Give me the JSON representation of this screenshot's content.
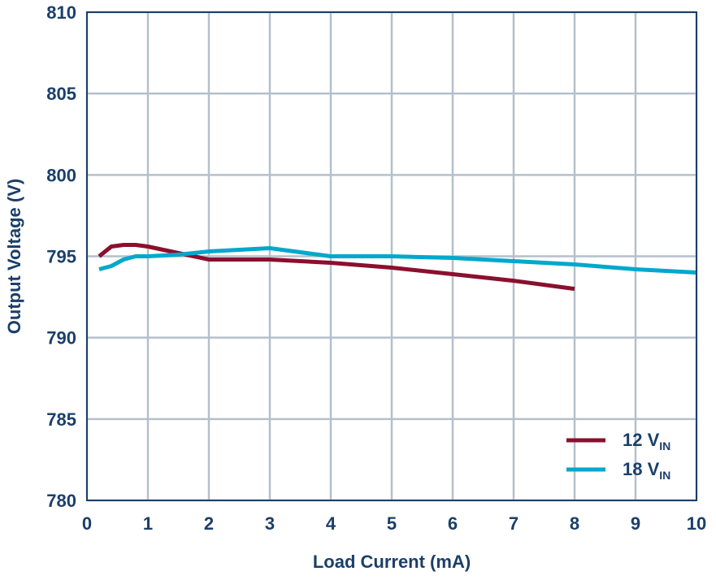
{
  "chart_data": {
    "type": "line",
    "title": "",
    "xlabel": "Load Current (mA)",
    "ylabel": "Output Voltage (V)",
    "xlim": [
      0,
      10
    ],
    "ylim": [
      780,
      810
    ],
    "x_ticks": [
      "0",
      "1",
      "2",
      "3",
      "4",
      "5",
      "6",
      "7",
      "8",
      "9",
      "10"
    ],
    "y_ticks": [
      "780",
      "785",
      "790",
      "795",
      "800",
      "805",
      "810"
    ],
    "grid": true,
    "legend_position": "bottom-right",
    "series": [
      {
        "name": "12 V",
        "name_subscript": "IN",
        "color": "#8b0f2e",
        "x": [
          0.2,
          0.4,
          0.6,
          0.8,
          1.0,
          1.5,
          2.0,
          3.0,
          4.0,
          5.0,
          6.0,
          7.0,
          8.0
        ],
        "y": [
          795.0,
          795.6,
          795.7,
          795.7,
          795.6,
          795.2,
          794.8,
          794.8,
          794.6,
          794.3,
          793.9,
          793.5,
          793.0
        ]
      },
      {
        "name": "18 V",
        "name_subscript": "IN",
        "color": "#00a8cc",
        "x": [
          0.2,
          0.4,
          0.6,
          0.8,
          1.0,
          1.5,
          2.0,
          3.0,
          4.0,
          5.0,
          6.0,
          7.0,
          8.0,
          9.0,
          10.0
        ],
        "y": [
          794.2,
          794.4,
          794.8,
          795.0,
          795.0,
          795.1,
          795.3,
          795.5,
          795.0,
          795.0,
          794.9,
          794.7,
          794.5,
          794.2,
          794.0
        ]
      }
    ]
  }
}
